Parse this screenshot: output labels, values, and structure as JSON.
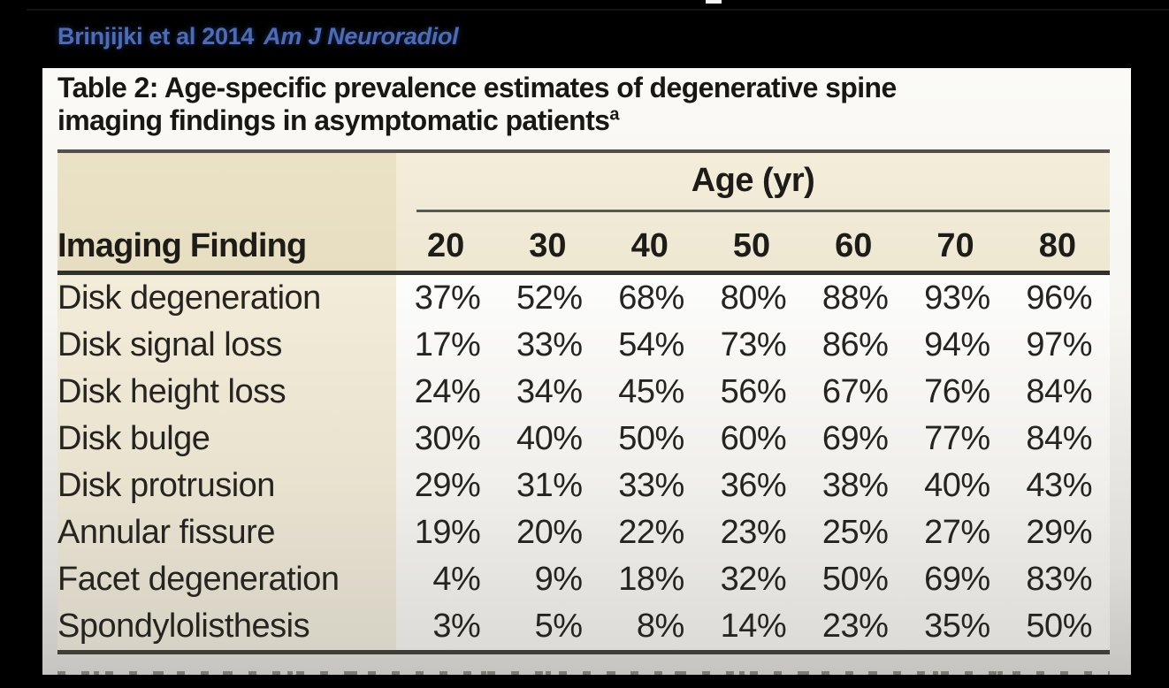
{
  "page": {
    "citation": {
      "authors_year": "Brinjijki et al 2014",
      "journal": "Am J Neuroradiol"
    }
  },
  "table": {
    "title_line1": "Table 2: Age-specific prevalence estimates of degenerative spine",
    "title_line2": "imaging findings in asymptomatic patients",
    "title_superscript": "a",
    "column_group_label": "Age (yr)",
    "row_header_label": "Imaging Finding",
    "age_columns": [
      "20",
      "30",
      "40",
      "50",
      "60",
      "70",
      "80"
    ],
    "rows": [
      {
        "label": "Disk degeneration",
        "values": [
          "37%",
          "52%",
          "68%",
          "80%",
          "88%",
          "93%",
          "96%"
        ]
      },
      {
        "label": "Disk signal loss",
        "values": [
          "17%",
          "33%",
          "54%",
          "73%",
          "86%",
          "94%",
          "97%"
        ]
      },
      {
        "label": "Disk height loss",
        "values": [
          "24%",
          "34%",
          "45%",
          "56%",
          "67%",
          "76%",
          "84%"
        ]
      },
      {
        "label": "Disk bulge",
        "values": [
          "30%",
          "40%",
          "50%",
          "60%",
          "69%",
          "77%",
          "84%"
        ]
      },
      {
        "label": "Disk protrusion",
        "values": [
          "29%",
          "31%",
          "33%",
          "36%",
          "38%",
          "40%",
          "43%"
        ]
      },
      {
        "label": "Annular fissure",
        "values": [
          "19%",
          "20%",
          "22%",
          "23%",
          "25%",
          "27%",
          "29%"
        ]
      },
      {
        "label": "Facet degeneration",
        "values": [
          "4%",
          "9%",
          "18%",
          "32%",
          "50%",
          "69%",
          "83%"
        ]
      },
      {
        "label": "Spondylolisthesis",
        "values": [
          "3%",
          "5%",
          "8%",
          "14%",
          "23%",
          "35%",
          "50%"
        ]
      }
    ]
  },
  "chart_data": {
    "type": "table",
    "title": "Table 2: Age-specific prevalence estimates of degenerative spine imaging findings in asymptomatic patients",
    "column_group": "Age (yr)",
    "columns": [
      "Imaging Finding",
      "20",
      "30",
      "40",
      "50",
      "60",
      "70",
      "80"
    ],
    "rows": [
      [
        "Disk degeneration",
        "37%",
        "52%",
        "68%",
        "80%",
        "88%",
        "93%",
        "96%"
      ],
      [
        "Disk signal loss",
        "17%",
        "33%",
        "54%",
        "73%",
        "86%",
        "94%",
        "97%"
      ],
      [
        "Disk height loss",
        "24%",
        "34%",
        "45%",
        "56%",
        "67%",
        "76%",
        "84%"
      ],
      [
        "Disk bulge",
        "30%",
        "40%",
        "50%",
        "60%",
        "69%",
        "77%",
        "84%"
      ],
      [
        "Disk protrusion",
        "29%",
        "31%",
        "33%",
        "36%",
        "38%",
        "40%",
        "43%"
      ],
      [
        "Annular fissure",
        "19%",
        "20%",
        "22%",
        "23%",
        "25%",
        "27%",
        "29%"
      ],
      [
        "Facet degeneration",
        "4%",
        "9%",
        "18%",
        "32%",
        "50%",
        "69%",
        "83%"
      ],
      [
        "Spondylolisthesis",
        "3%",
        "5%",
        "8%",
        "14%",
        "23%",
        "35%",
        "50%"
      ]
    ]
  },
  "colors": {
    "background": "#000000",
    "citation_blue": "#4c6cba",
    "card_white": "#fbfaf7",
    "header_tan_left": "#e9e0c4",
    "header_tan_right": "#f1ead6",
    "body_tan": "#f0e9d5",
    "rule_dark": "#33312c",
    "text_dark": "#262420"
  }
}
